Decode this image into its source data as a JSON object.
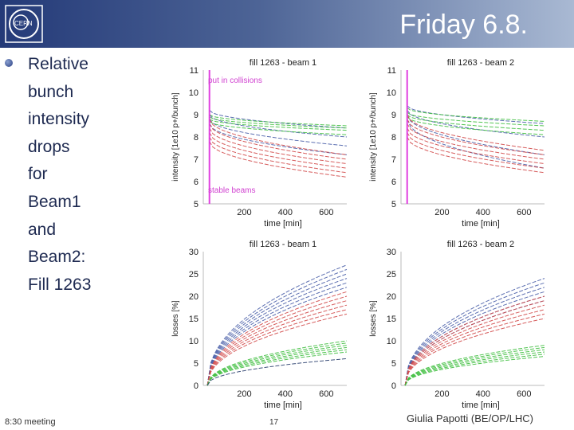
{
  "slide": {
    "title": "Friday 6.8.",
    "bullet_lines": [
      "Relative",
      "bunch",
      "intensity",
      "drops",
      "for",
      "Beam1",
      "and",
      "Beam2:",
      "Fill 1263"
    ],
    "footer_left": "8:30 meeting",
    "footer_page": "17",
    "footer_right": "Giulia Papotti (BE/OP/LHC)"
  },
  "chart_data": [
    {
      "type": "line",
      "title": "fill 1263 - beam 1",
      "xlabel": "time [min]",
      "ylabel": "intensity [1e10 p+/bunch]",
      "xlim": [
        0,
        700
      ],
      "ylim": [
        5,
        11
      ],
      "xticks": [
        200,
        400,
        600
      ],
      "yticks": [
        5,
        6,
        7,
        8,
        9,
        10,
        11
      ],
      "annotations": [
        "put in collisions",
        "stable beams"
      ],
      "marker_x": 30,
      "series": [
        {
          "name": "blue group",
          "color": "#4a5fa8",
          "start": [
            9.2,
            9.0,
            8.8,
            8.6
          ],
          "end": [
            8.4,
            8.0,
            7.6,
            7.2
          ],
          "bunch_count": 4
        },
        {
          "name": "green group",
          "color": "#3fbf3f",
          "start": [
            9.0,
            8.9,
            8.8,
            8.7
          ],
          "end": [
            8.5,
            8.4,
            8.3,
            8.1
          ],
          "bunch_count": 4
        },
        {
          "name": "red group",
          "color": "#d24a4a",
          "start": [
            8.8,
            8.6,
            8.4,
            8.2,
            8.0,
            7.8
          ],
          "end": [
            7.2,
            7.0,
            6.8,
            6.6,
            6.4,
            6.2
          ],
          "bunch_count": 6
        }
      ]
    },
    {
      "type": "line",
      "title": "fill 1263 - beam 2",
      "xlabel": "time [min]",
      "ylabel": "intensity [1e10 p+/bunch]",
      "xlim": [
        0,
        700
      ],
      "ylim": [
        5,
        11
      ],
      "xticks": [
        200,
        400,
        600
      ],
      "yticks": [
        5,
        6,
        7,
        8,
        9,
        10,
        11
      ],
      "annotations": [],
      "marker_x": 30,
      "series": [
        {
          "name": "blue group",
          "color": "#4a5fa8",
          "start": [
            9.4,
            9.2,
            9.0,
            8.8
          ],
          "end": [
            8.6,
            8.0,
            7.2,
            6.6
          ],
          "bunch_count": 4
        },
        {
          "name": "green group",
          "color": "#3fbf3f",
          "start": [
            9.3,
            9.1,
            9.0,
            8.9
          ],
          "end": [
            8.7,
            8.5,
            8.3,
            8.1
          ],
          "bunch_count": 4
        },
        {
          "name": "red group",
          "color": "#d24a4a",
          "start": [
            9.0,
            8.8,
            8.6,
            8.4,
            8.2,
            8.0
          ],
          "end": [
            7.4,
            7.2,
            7.0,
            6.8,
            6.6,
            6.4
          ],
          "bunch_count": 6
        }
      ]
    },
    {
      "type": "line",
      "title": "fill 1263 - beam 1",
      "xlabel": "time [min]",
      "ylabel": "losses [%]",
      "xlim": [
        0,
        700
      ],
      "ylim": [
        0,
        30
      ],
      "xticks": [
        200,
        400,
        600
      ],
      "yticks": [
        0,
        5,
        10,
        15,
        20,
        25,
        30
      ],
      "annotations": [],
      "series": [
        {
          "name": "blue group",
          "color": "#4a5fa8",
          "end": [
            27,
            26,
            25,
            24,
            23,
            22
          ],
          "bunch_count": 6
        },
        {
          "name": "red group",
          "color": "#d24a4a",
          "end": [
            21,
            20,
            19,
            18,
            17,
            16
          ],
          "bunch_count": 6
        },
        {
          "name": "green group",
          "color": "#3fbf3f",
          "end": [
            10,
            9.5,
            9,
            8.5,
            8,
            7.5
          ],
          "bunch_count": 6
        },
        {
          "name": "dark group",
          "color": "#2a3f6e",
          "end": [
            6
          ],
          "bunch_count": 1
        }
      ]
    },
    {
      "type": "line",
      "title": "fill 1263 - beam 2",
      "xlabel": "time [min]",
      "ylabel": "losses [%]",
      "xlim": [
        0,
        700
      ],
      "ylim": [
        0,
        30
      ],
      "xticks": [
        200,
        400,
        600
      ],
      "yticks": [
        0,
        5,
        10,
        15,
        20,
        25,
        30
      ],
      "annotations": [],
      "series": [
        {
          "name": "blue group",
          "color": "#4a5fa8",
          "end": [
            24,
            23,
            22,
            21,
            20,
            19
          ],
          "bunch_count": 6
        },
        {
          "name": "red group",
          "color": "#d24a4a",
          "end": [
            20,
            19,
            18,
            17,
            16,
            15
          ],
          "bunch_count": 6
        },
        {
          "name": "green group",
          "color": "#3fbf3f",
          "end": [
            9,
            8.5,
            8,
            7.5,
            7,
            6.5
          ],
          "bunch_count": 6
        }
      ]
    }
  ]
}
